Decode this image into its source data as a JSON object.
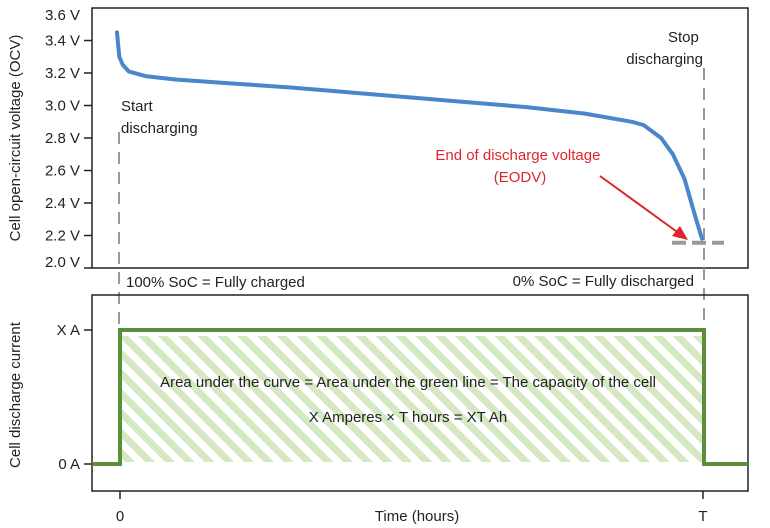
{
  "chart_data": [
    {
      "type": "line",
      "ylabel": "Cell open-circuit voltage (OCV)",
      "yticks": [
        "3.6 V",
        "3.4 V",
        "3.2 V",
        "3.0 V",
        "2.8 V",
        "2.6 V",
        "2.4 V",
        "2.2 V",
        "2.0 V"
      ],
      "ytick_values": [
        3.6,
        3.4,
        3.2,
        3.0,
        2.8,
        2.6,
        2.4,
        2.2,
        2.0
      ],
      "ylim": [
        2.0,
        3.6
      ],
      "xlim": [
        0,
        1
      ],
      "series": [
        {
          "color": "#4a86c8",
          "x": [
            0,
            0.004,
            0.01,
            0.02,
            0.05,
            0.1,
            0.2,
            0.3,
            0.4,
            0.5,
            0.6,
            0.7,
            0.8,
            0.88,
            0.9,
            0.93,
            0.95,
            0.97,
            0.99,
            1.0
          ],
          "y": [
            3.45,
            3.3,
            3.25,
            3.21,
            3.18,
            3.16,
            3.135,
            3.11,
            3.08,
            3.05,
            3.02,
            2.99,
            2.95,
            2.9,
            2.88,
            2.8,
            2.7,
            2.55,
            2.3,
            2.18
          ]
        }
      ],
      "eodv_marker_y": 2.18,
      "annotations": {
        "start": [
          "Start",
          "discharging"
        ],
        "stop": [
          "Stop",
          "discharging"
        ],
        "eodv": [
          "End of discharge voltage",
          "(EODV)"
        ],
        "full": "100% SoC = Fully charged",
        "empty": "0% SoC = Fully discharged"
      }
    },
    {
      "type": "line",
      "ylabel": "Cell discharge current",
      "xlabel": "Time (hours)",
      "xticks": [
        "0",
        "T"
      ],
      "yticks": [
        "X A",
        "0 A"
      ],
      "series": [
        {
          "color": "#5a8f3c",
          "points": [
            [
              "before",
              "0 A"
            ],
            [
              "0",
              "0 A"
            ],
            [
              "0",
              "X A"
            ],
            [
              "T",
              "X A"
            ],
            [
              "T",
              "0 A"
            ],
            [
              "after",
              "0 A"
            ]
          ]
        }
      ],
      "fill": "#cfe5b8",
      "annotations": [
        "Area under the curve = Area under the green line = The capacity of the cell",
        "X Amperes × T hours =  XT Ah"
      ]
    }
  ]
}
